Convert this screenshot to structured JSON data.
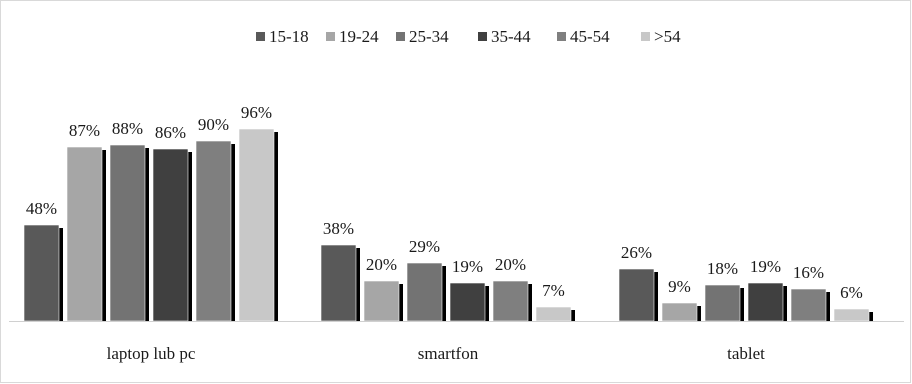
{
  "chart_data": {
    "type": "bar",
    "categories": [
      "laptop lub pc",
      "smartfon",
      "tablet"
    ],
    "series": [
      {
        "name": "15-18",
        "color": "#595959",
        "values": [
          48,
          38,
          26
        ]
      },
      {
        "name": "19-24",
        "color": "#a6a6a6",
        "values": [
          87,
          20,
          9
        ]
      },
      {
        "name": "25-34",
        "color": "#737373",
        "values": [
          88,
          29,
          18
        ]
      },
      {
        "name": "35-44",
        "color": "#404040",
        "values": [
          86,
          19,
          19
        ]
      },
      {
        "name": "45-54",
        "color": "#7f7f7f",
        "values": [
          90,
          20,
          16
        ]
      },
      {
        "name": ">54",
        "color": "#c8c8c8",
        "values": [
          96,
          7,
          6
        ]
      }
    ],
    "value_suffix": "%",
    "ylim": [
      0,
      100
    ],
    "legend_position": "top-center",
    "grid": false,
    "bar_shadow": true
  }
}
